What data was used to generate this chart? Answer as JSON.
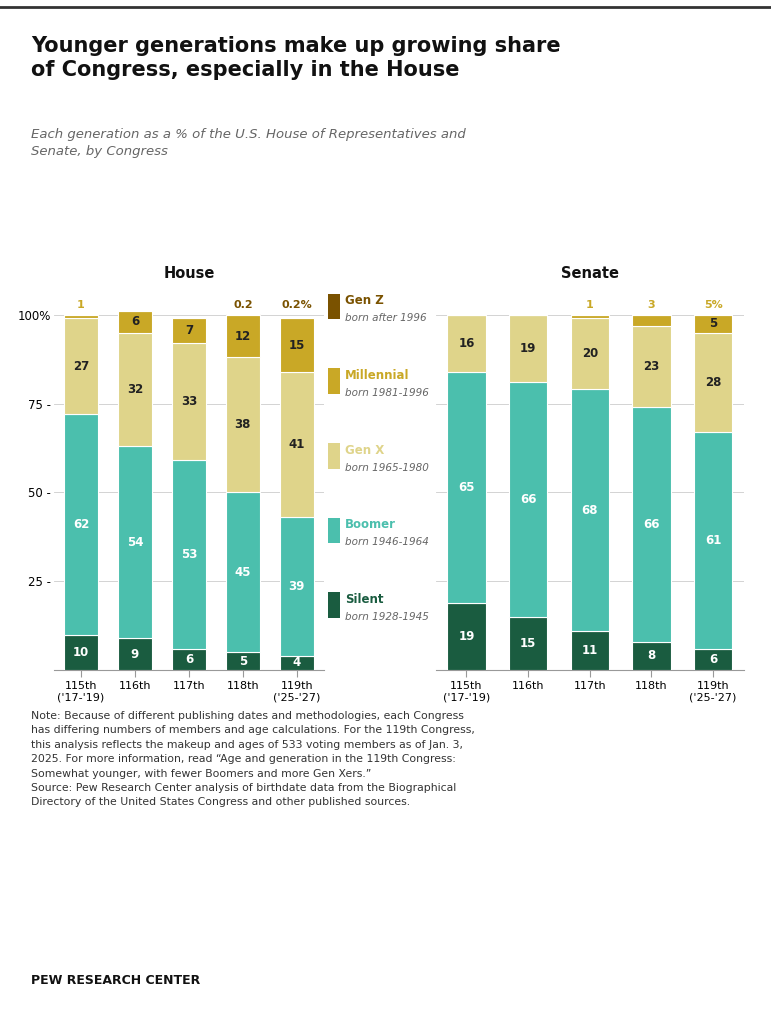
{
  "title": "Younger generations make up growing share\nof Congress, especially in the House",
  "subtitle": "Each generation as a % of the U.S. House of Representatives and\nSenate, by Congress",
  "house_congresses": [
    "115th\n('17-'19)",
    "116th",
    "117th",
    "118th",
    "119th\n('25-'27)"
  ],
  "senate_congresses": [
    "115th\n('17-'19)",
    "116th",
    "117th",
    "118th",
    "119th\n('25-'27)"
  ],
  "house_data": {
    "Silent": [
      10,
      9,
      6,
      5,
      4
    ],
    "Boomer": [
      62,
      54,
      53,
      45,
      39
    ],
    "Gen X": [
      27,
      32,
      33,
      38,
      41
    ],
    "Millennial": [
      1,
      6,
      7,
      12,
      15
    ],
    "Gen Z": [
      0,
      0,
      0,
      0.2,
      0.2
    ]
  },
  "senate_data": {
    "Silent": [
      19,
      15,
      11,
      8,
      6
    ],
    "Boomer": [
      65,
      66,
      68,
      66,
      61
    ],
    "Gen X": [
      16,
      19,
      20,
      23,
      28
    ],
    "Millennial": [
      0,
      0,
      1,
      3,
      5
    ],
    "Gen Z": [
      0,
      0,
      0,
      0,
      0
    ]
  },
  "colors": {
    "Silent": "#1a5c40",
    "Boomer": "#4bbfad",
    "Gen X": "#dfd48a",
    "Millennial": "#c9a826",
    "Gen Z": "#7a5200"
  },
  "house_above_labels": {
    "Millennial": [
      1,
      null,
      null,
      null,
      null
    ],
    "Gen Z": [
      null,
      null,
      null,
      "0.2",
      "0.2%"
    ]
  },
  "senate_above_labels": {
    "Millennial": [
      null,
      null,
      1,
      3,
      "5%"
    ],
    "Gen Z": [
      null,
      null,
      null,
      null,
      null
    ]
  },
  "legend_items": [
    {
      "name": "Gen Z",
      "sublabel": "born after 1996"
    },
    {
      "name": "Millennial",
      "sublabel": "born 1981-1996"
    },
    {
      "name": "Gen X",
      "sublabel": "born 1965-1980"
    },
    {
      "name": "Boomer",
      "sublabel": "born 1946-1964"
    },
    {
      "name": "Silent",
      "sublabel": "born 1928-1945"
    }
  ],
  "note": "Note: Because of different publishing dates and methodologies, each Congress\nhas differing numbers of members and age calculations. For the 119th Congress,\nthis analysis reflects the makeup and ages of 533 voting members as of Jan. 3,\n2025. For more information, read “Age and generation in the 119th Congress:\nSomewhat younger, with fewer Boomers and more Gen Xers.”\nSource: Pew Research Center analysis of birthdate data from the Biographical\nDirectory of the United States Congress and other published sources.",
  "source_label": "PEW RESEARCH CENTER",
  "bg_color": "#ffffff",
  "bar_width": 0.62
}
